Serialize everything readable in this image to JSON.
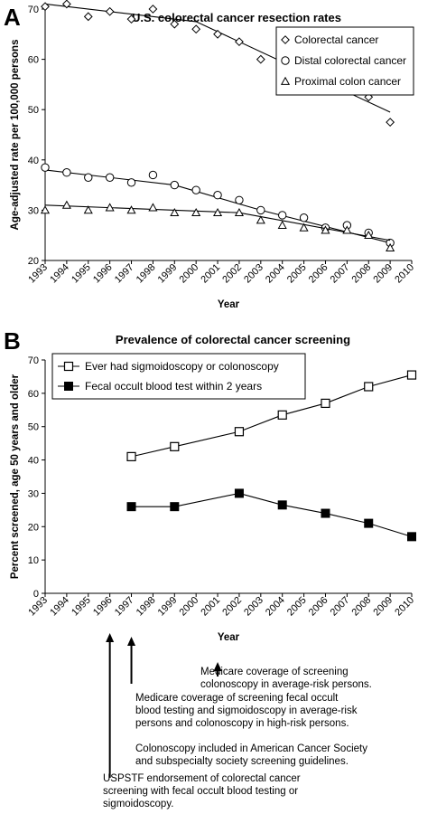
{
  "chart_data": [
    {
      "panel": "A",
      "type": "scatter",
      "title": "U.S. colorectal cancer resection rates",
      "xlabel": "Year",
      "ylabel": "Age-adjusted rate per 100,000 persons",
      "xlim": [
        1993,
        2010
      ],
      "ylim": [
        20,
        70
      ],
      "x_ticks": [
        1993,
        1994,
        1995,
        1996,
        1997,
        1998,
        1999,
        2000,
        2001,
        2002,
        2003,
        2004,
        2005,
        2006,
        2007,
        2008,
        2009,
        2010
      ],
      "y_ticks": [
        20,
        30,
        40,
        50,
        60,
        70
      ],
      "legend_position": "top-right",
      "series": [
        {
          "name": "Colorectal cancer",
          "marker": "diamond",
          "x": [
            1993,
            1994,
            1995,
            1996,
            1997,
            1998,
            1999,
            2000,
            2001,
            2002,
            2003,
            2004,
            2005,
            2006,
            2007,
            2008,
            2009
          ],
          "values": [
            70.5,
            71,
            68.5,
            69.5,
            68,
            70,
            67,
            66,
            65,
            63.5,
            60,
            58,
            57,
            54,
            54,
            52.5,
            47.5
          ],
          "trend": [
            [
              1993,
              71
            ],
            [
              2000,
              67.5
            ],
            [
              2009,
              49.5
            ]
          ]
        },
        {
          "name": "Distal colorectal cancer",
          "marker": "circle",
          "x": [
            1993,
            1994,
            1995,
            1996,
            1997,
            1998,
            1999,
            2000,
            2001,
            2002,
            2003,
            2004,
            2005,
            2006,
            2007,
            2008,
            2009
          ],
          "values": [
            38.5,
            37.5,
            36.5,
            36.5,
            35.5,
            37,
            35,
            34,
            33,
            32,
            30,
            29,
            28.5,
            26.5,
            27,
            25.5,
            23.5
          ],
          "trend": [
            [
              1993,
              38
            ],
            [
              1999,
              35
            ],
            [
              2003,
              30
            ],
            [
              2009,
              23.5
            ]
          ]
        },
        {
          "name": "Proximal colon cancer",
          "marker": "triangle",
          "x": [
            1993,
            1994,
            1995,
            1996,
            1997,
            1998,
            1999,
            2000,
            2001,
            2002,
            2003,
            2004,
            2005,
            2006,
            2007,
            2008,
            2009
          ],
          "values": [
            30,
            31,
            30,
            30.5,
            30,
            30.5,
            29.5,
            29.5,
            29.5,
            29.5,
            28,
            27,
            26.5,
            26,
            26,
            25,
            22.5
          ],
          "trend": [
            [
              1993,
              31
            ],
            [
              2002,
              29.5
            ],
            [
              2009,
              24
            ]
          ]
        }
      ]
    },
    {
      "panel": "B",
      "type": "line",
      "title": "Prevalence of colorectal cancer screening",
      "xlabel": "Year",
      "ylabel": "Percent screened, age 50 years and older",
      "xlim": [
        1993,
        2010
      ],
      "ylim": [
        0,
        70
      ],
      "x_ticks": [
        1993,
        1994,
        1995,
        1996,
        1997,
        1998,
        1999,
        2000,
        2001,
        2002,
        2003,
        2004,
        2005,
        2006,
        2007,
        2008,
        2009,
        2010
      ],
      "y_ticks": [
        0,
        10,
        20,
        30,
        40,
        50,
        60,
        70
      ],
      "legend_position": "top-left",
      "series": [
        {
          "name": "Ever had sigmoidoscopy or colonoscopy",
          "marker": "open-square",
          "x": [
            1997,
            1999,
            2002,
            2004,
            2006,
            2008,
            2010
          ],
          "values": [
            41,
            44,
            48.5,
            53.5,
            57,
            62,
            65.5
          ]
        },
        {
          "name": "Fecal occult blood test within 2 years",
          "marker": "filled-square",
          "x": [
            1997,
            1999,
            2002,
            2004,
            2006,
            2008,
            2010
          ],
          "values": [
            26,
            26,
            30,
            26.5,
            24,
            21,
            17
          ]
        }
      ],
      "annotations": [
        {
          "year": 2001,
          "lines": [
            "Medicare coverage of screening",
            "colonoscopy in average-risk persons."
          ]
        },
        {
          "year": 1997,
          "lines": [
            "Medicare coverage of screening fecal occult",
            "blood testing and sigmoidoscopy in average-risk",
            "persons and colonoscopy in high-risk persons.",
            "",
            "Colonoscopy included in American Cancer Society",
            "and subspecialty society screening guidelines."
          ]
        },
        {
          "year": 1996,
          "lines": [
            "USPSTF endorsement of colorectal cancer",
            "screening with fecal occult blood testing or",
            "sigmoidoscopy."
          ]
        }
      ]
    }
  ],
  "panels": {
    "a_letter": "A",
    "b_letter": "B"
  }
}
